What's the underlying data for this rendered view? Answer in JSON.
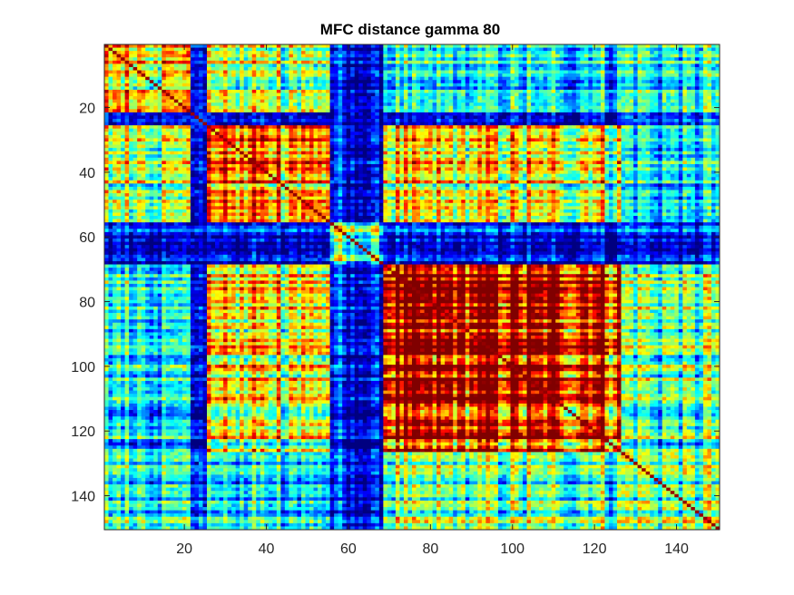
{
  "chart_data": {
    "type": "heatmap",
    "title": "MFC distance gamma 80",
    "xlabel": "",
    "ylabel": "",
    "n": 150,
    "xlim": [
      0.5,
      150.5
    ],
    "ylim": [
      0.5,
      150.5
    ],
    "y_reversed": true,
    "x_ticks": [
      20,
      40,
      60,
      80,
      100,
      120,
      140
    ],
    "y_ticks": [
      20,
      40,
      60,
      80,
      100,
      120,
      140
    ],
    "x_tick_labels": [
      "20",
      "40",
      "60",
      "80",
      "100",
      "120",
      "140"
    ],
    "y_tick_labels": [
      "20",
      "40",
      "60",
      "80",
      "100",
      "120",
      "140"
    ],
    "colormap": "jet",
    "clim": [
      0,
      1
    ],
    "grid": false,
    "block_boundaries": [
      1,
      22,
      26,
      56,
      69,
      127,
      151
    ],
    "block_intensity": [
      [
        0.68,
        0.12,
        0.55,
        0.12,
        0.35,
        0.4
      ],
      [
        0.12,
        0.22,
        0.1,
        0.1,
        0.1,
        0.2
      ],
      [
        0.55,
        0.1,
        0.75,
        0.12,
        0.6,
        0.35
      ],
      [
        0.12,
        0.1,
        0.12,
        0.45,
        0.12,
        0.15
      ],
      [
        0.35,
        0.1,
        0.6,
        0.12,
        0.88,
        0.45
      ],
      [
        0.4,
        0.2,
        0.35,
        0.15,
        0.45,
        0.5
      ]
    ]
  }
}
